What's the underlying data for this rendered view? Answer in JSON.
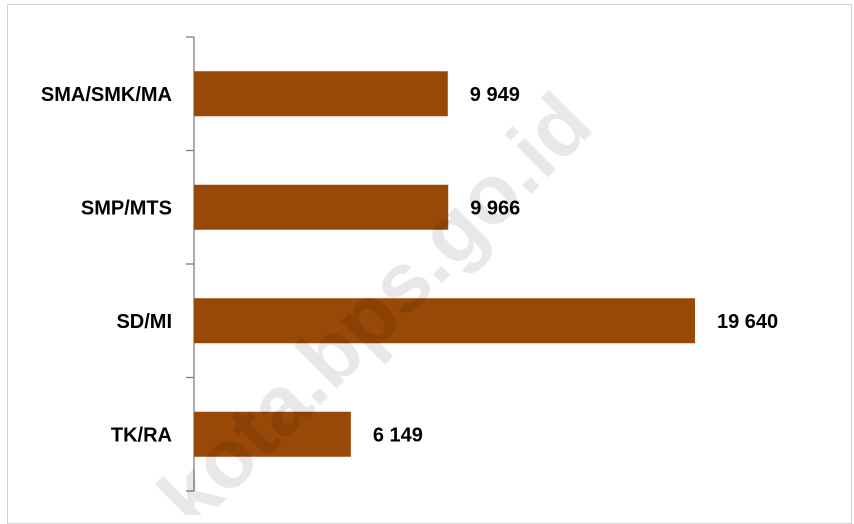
{
  "watermark": "kota.bps.go.id",
  "chart_data": {
    "type": "bar",
    "orientation": "horizontal",
    "categories": [
      "SMA/SMK/MA",
      "SMP/MTS",
      "SD/MI",
      "TK/RA"
    ],
    "values": [
      9949,
      9966,
      19640,
      6149
    ],
    "value_labels": [
      "9 949",
      "9 966",
      "19 640",
      "6 149"
    ],
    "title": "",
    "xlabel": "",
    "ylabel": "",
    "xlim": [
      0,
      20000
    ],
    "grid": false,
    "bar_color": "#984807"
  }
}
